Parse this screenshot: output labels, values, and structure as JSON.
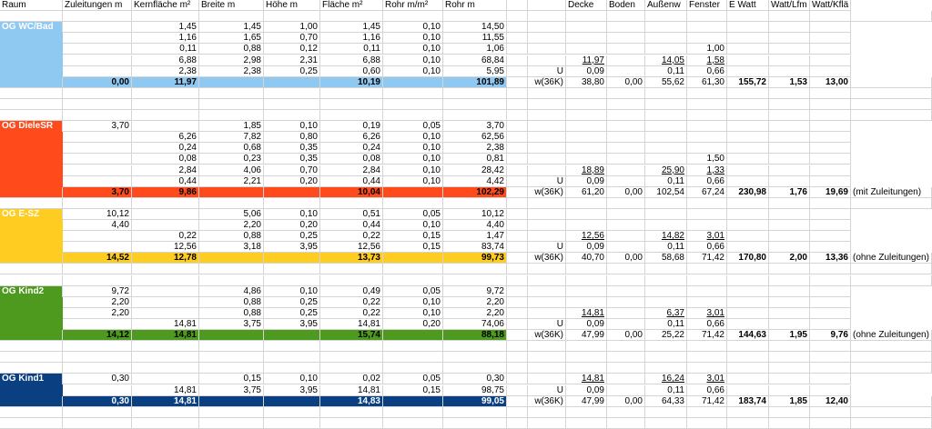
{
  "colors": {
    "wc": "#8fc8f0",
    "diele": "#ff4a1c",
    "esz": "#ffcc22",
    "kind2": "#4e9a1e",
    "kind1": "#0a3f82"
  },
  "headers": [
    "Raum",
    "Zuleitungen m",
    "Kernfläche m²",
    "Breite m",
    "Höhe m",
    "Fläche m²",
    "Rohr m/m²",
    "Rohr m",
    "",
    "",
    "Decke",
    "Boden",
    "Außenw",
    "Fenster",
    "E Watt",
    "Watt/Lfm",
    "Watt/Kflä"
  ],
  "blocks": [
    {
      "name": "OG WC/Bad",
      "color": "wc",
      "rows": [
        [
          "",
          "1,45",
          "1,45",
          "1,00",
          "1,45",
          "0,10",
          "14,50",
          "",
          "",
          "",
          "",
          "",
          "",
          "",
          "",
          ""
        ],
        [
          "",
          "1,16",
          "1,65",
          "0,70",
          "1,16",
          "0,10",
          "11,55",
          "",
          "",
          "",
          "",
          "",
          "",
          "",
          "",
          ""
        ],
        [
          "",
          "0,11",
          "0,88",
          "0,12",
          "0,11",
          "0,10",
          "1,06",
          "",
          "",
          "",
          "",
          "",
          "1,00",
          "",
          "",
          ""
        ],
        [
          "",
          "6,88",
          "2,98",
          "2,31",
          "6,88",
          "0,10",
          "68,84",
          "",
          "",
          "11,97",
          "",
          "14,05",
          "1,58",
          "",
          "",
          ""
        ],
        [
          "",
          "2,38",
          "2,38",
          "0,25",
          "0,60",
          "0,10",
          "5,95",
          "",
          "U",
          "0,09",
          "",
          "0,11",
          "0,66",
          "",
          "",
          ""
        ]
      ],
      "total": [
        "0,00",
        "11,97",
        "",
        "",
        "10,19",
        "",
        "101,89",
        "",
        "w(36K)",
        "38,80",
        "0,00",
        "55,62",
        "61,30",
        "155,72",
        "1,53",
        "13,00"
      ],
      "note": ""
    },
    {
      "name": "OG DieleSR",
      "color": "diele",
      "rows": [
        [
          "3,70",
          "",
          "1,85",
          "0,10",
          "0,19",
          "0,05",
          "3,70",
          "",
          "",
          "",
          "",
          "",
          "",
          "",
          "",
          ""
        ],
        [
          "",
          "6,26",
          "7,82",
          "0,80",
          "6,26",
          "0,10",
          "62,56",
          "",
          "",
          "",
          "",
          "",
          "",
          "",
          "",
          ""
        ],
        [
          "",
          "0,24",
          "0,68",
          "0,35",
          "0,24",
          "0,10",
          "2,38",
          "",
          "",
          "",
          "",
          "",
          "",
          "",
          "",
          ""
        ],
        [
          "",
          "0,08",
          "0,23",
          "0,35",
          "0,08",
          "0,10",
          "0,81",
          "",
          "",
          "",
          "",
          "",
          "1,50",
          "",
          "",
          ""
        ],
        [
          "",
          "2,84",
          "4,06",
          "0,70",
          "2,84",
          "0,10",
          "28,42",
          "",
          "",
          "18,89",
          "",
          "25,90",
          "1,33",
          "",
          "",
          ""
        ],
        [
          "",
          "0,44",
          "2,21",
          "0,20",
          "0,44",
          "0,10",
          "4,42",
          "",
          "U",
          "0,09",
          "",
          "0,11",
          "0,66",
          "",
          "",
          ""
        ]
      ],
      "total": [
        "3,70",
        "9,86",
        "",
        "",
        "10,04",
        "",
        "102,29",
        "",
        "w(36K)",
        "61,20",
        "0,00",
        "102,54",
        "67,24",
        "230,98",
        "1,76",
        "19,69"
      ],
      "note": "(mit Zuleitungen)"
    },
    {
      "name": "OG E-SZ",
      "color": "esz",
      "rows": [
        [
          "10,12",
          "",
          "5,06",
          "0,10",
          "0,51",
          "0,05",
          "10,12",
          "",
          "",
          "",
          "",
          "",
          "",
          "",
          "",
          ""
        ],
        [
          "4,40",
          "",
          "2,20",
          "0,20",
          "0,44",
          "0,10",
          "4,40",
          "",
          "",
          "",
          "",
          "",
          "",
          "",
          "",
          ""
        ],
        [
          "",
          "0,22",
          "0,88",
          "0,25",
          "0,22",
          "0,15",
          "1,47",
          "",
          "",
          "12,56",
          "",
          "14,82",
          "3,01",
          "",
          "",
          ""
        ],
        [
          "",
          "12,56",
          "3,18",
          "3,95",
          "12,56",
          "0,15",
          "83,74",
          "",
          "U",
          "0,09",
          "",
          "0,11",
          "0,66",
          "",
          "",
          ""
        ]
      ],
      "total": [
        "14,52",
        "12,78",
        "",
        "",
        "13,73",
        "",
        "99,73",
        "",
        "w(36K)",
        "40,70",
        "0,00",
        "58,68",
        "71,42",
        "170,80",
        "2,00",
        "13,36"
      ],
      "note": "(ohne Zuleitungen)"
    },
    {
      "name": "OG Kind2",
      "color": "kind2",
      "rows": [
        [
          "9,72",
          "",
          "4,86",
          "0,10",
          "0,49",
          "0,05",
          "9,72",
          "",
          "",
          "",
          "",
          "",
          "",
          "",
          "",
          ""
        ],
        [
          "2,20",
          "",
          "0,88",
          "0,25",
          "0,22",
          "0,10",
          "2,20",
          "",
          "",
          "",
          "",
          "",
          "",
          "",
          "",
          ""
        ],
        [
          "2,20",
          "",
          "0,88",
          "0,25",
          "0,22",
          "0,10",
          "2,20",
          "",
          "",
          "14,81",
          "",
          "6,37",
          "3,01",
          "",
          "",
          ""
        ],
        [
          "",
          "14,81",
          "3,75",
          "3,95",
          "14,81",
          "0,20",
          "74,06",
          "",
          "U",
          "0,09",
          "",
          "0,11",
          "0,66",
          "",
          "",
          ""
        ]
      ],
      "total": [
        "14,12",
        "14,81",
        "",
        "",
        "15,74",
        "",
        "88,18",
        "",
        "w(36K)",
        "47,99",
        "0,00",
        "25,22",
        "71,42",
        "144,63",
        "1,95",
        "9,76"
      ],
      "note": "(ohne Zuleitungen)"
    },
    {
      "name": "OG Kind1",
      "color": "kind1",
      "rows": [
        [
          "0,30",
          "",
          "0,15",
          "0,10",
          "0,02",
          "0,05",
          "0,30",
          "",
          "",
          "14,81",
          "",
          "16,24",
          "3,01",
          "",
          "",
          ""
        ],
        [
          "",
          "14,81",
          "3,75",
          "3,95",
          "14,81",
          "0,15",
          "98,75",
          "",
          "U",
          "0,09",
          "",
          "0,11",
          "0,66",
          "",
          "",
          ""
        ]
      ],
      "total": [
        "0,30",
        "14,81",
        "",
        "",
        "14,83",
        "",
        "99,05",
        "",
        "w(36K)",
        "47,99",
        "0,00",
        "64,33",
        "71,42",
        "183,74",
        "1,85",
        "12,40"
      ],
      "note": ""
    }
  ]
}
